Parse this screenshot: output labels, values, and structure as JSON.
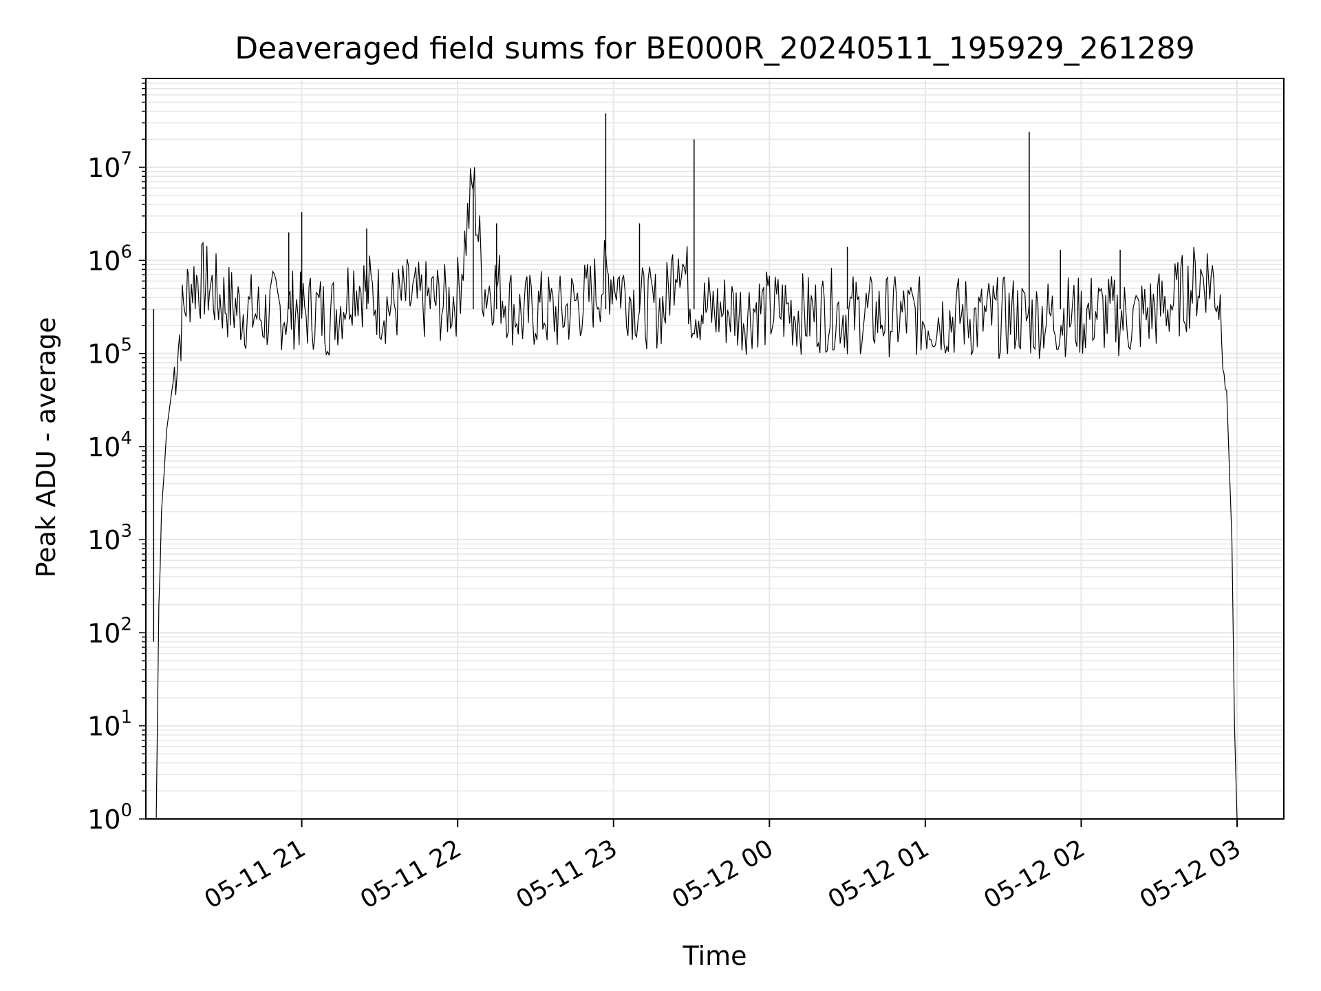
{
  "chart_data": {
    "type": "line",
    "title": "Deaveraged field sums for BE000R_20240511_195929_261289",
    "xlabel": "Time",
    "ylabel": "Peak ADU - average",
    "yscale": "log",
    "ylim": [
      1,
      90000000
    ],
    "xlim": [
      "2024-05-11 20:00",
      "2024-05-12 03:18"
    ],
    "grid": true,
    "line_color": "#000000",
    "grid_color": "#e6e6e6",
    "x_ticks": [
      {
        "value": "2024-05-11 21:00",
        "label": "05-11 21"
      },
      {
        "value": "2024-05-11 22:00",
        "label": "05-11 22"
      },
      {
        "value": "2024-05-11 23:00",
        "label": "05-11 23"
      },
      {
        "value": "2024-05-12 00:00",
        "label": "05-12 00"
      },
      {
        "value": "2024-05-12 01:00",
        "label": "05-12 01"
      },
      {
        "value": "2024-05-12 02:00",
        "label": "05-12 02"
      },
      {
        "value": "2024-05-12 03:00",
        "label": "05-12 03"
      }
    ],
    "y_ticks": [
      {
        "value": 1,
        "base": "10",
        "exp": "0"
      },
      {
        "value": 10,
        "base": "10",
        "exp": "1"
      },
      {
        "value": 100,
        "base": "10",
        "exp": "2"
      },
      {
        "value": 1000,
        "base": "10",
        "exp": "3"
      },
      {
        "value": 10000,
        "base": "10",
        "exp": "4"
      },
      {
        "value": 100000,
        "base": "10",
        "exp": "5"
      },
      {
        "value": 1000000,
        "base": "10",
        "exp": "6"
      },
      {
        "value": 10000000,
        "base": "10",
        "exp": "7"
      }
    ],
    "series": [
      {
        "x": [
          "2024-05-11 20:04",
          "2024-05-11 20:05",
          "2024-05-11 20:05:30",
          "2024-05-11 20:06",
          "2024-05-11 20:07",
          "2024-05-11 20:08",
          "2024-05-11 20:10",
          "2024-05-11 20:12",
          "2024-05-11 20:14",
          "2024-05-11 20:16",
          "2024-05-11 20:18",
          "2024-05-11 20:20",
          "2024-05-11 20:24",
          "2024-05-11 20:28",
          "2024-05-11 20:32",
          "2024-05-11 20:36",
          "2024-05-11 20:40",
          "2024-05-11 20:45",
          "2024-05-11 20:50",
          "2024-05-11 20:55",
          "2024-05-11 20:58",
          "2024-05-11 21:00",
          "2024-05-11 21:05",
          "2024-05-11 21:10",
          "2024-05-11 21:15",
          "2024-05-11 21:20",
          "2024-05-11 21:25",
          "2024-05-11 21:30",
          "2024-05-11 21:35",
          "2024-05-11 21:40",
          "2024-05-11 21:45",
          "2024-05-11 21:50",
          "2024-05-11 21:55",
          "2024-05-11 22:00",
          "2024-05-11 22:06",
          "2024-05-11 22:10",
          "2024-05-11 22:15",
          "2024-05-11 22:20",
          "2024-05-11 22:25",
          "2024-05-11 22:30",
          "2024-05-11 22:35",
          "2024-05-11 22:40",
          "2024-05-11 22:45",
          "2024-05-11 22:50",
          "2024-05-11 22:56",
          "2024-05-11 23:00",
          "2024-05-11 23:05",
          "2024-05-11 23:10",
          "2024-05-11 23:15",
          "2024-05-11 23:20",
          "2024-05-11 23:25",
          "2024-05-11 23:30",
          "2024-05-11 23:35",
          "2024-05-11 23:40",
          "2024-05-11 23:45",
          "2024-05-11 23:50",
          "2024-05-11 23:55",
          "2024-05-12 00:00",
          "2024-05-12 00:05",
          "2024-05-12 00:10",
          "2024-05-12 00:15",
          "2024-05-12 00:20",
          "2024-05-12 00:25",
          "2024-05-12 00:30",
          "2024-05-12 00:35",
          "2024-05-12 00:40",
          "2024-05-12 00:45",
          "2024-05-12 00:50",
          "2024-05-12 00:55",
          "2024-05-12 01:00",
          "2024-05-12 01:05",
          "2024-05-12 01:10",
          "2024-05-12 01:15",
          "2024-05-12 01:20",
          "2024-05-12 01:25",
          "2024-05-12 01:30",
          "2024-05-12 01:35",
          "2024-05-12 01:40",
          "2024-05-12 01:45",
          "2024-05-12 01:50",
          "2024-05-12 01:55",
          "2024-05-12 02:00",
          "2024-05-12 02:05",
          "2024-05-12 02:10",
          "2024-05-12 02:15",
          "2024-05-12 02:20",
          "2024-05-12 02:25",
          "2024-05-12 02:30",
          "2024-05-12 02:35",
          "2024-05-12 02:40",
          "2024-05-12 02:45",
          "2024-05-12 02:48",
          "2024-05-12 02:51",
          "2024-05-12 02:54",
          "2024-05-12 02:56",
          "2024-05-12 02:58",
          "2024-05-12 02:59",
          "2024-05-12 03:00"
        ],
        "y": [
          1,
          200,
          500,
          2000,
          5000,
          15000,
          40000,
          100000,
          250000,
          450000,
          600000,
          620000,
          550000,
          400000,
          350000,
          300000,
          280000,
          250000,
          300000,
          280000,
          320000,
          260000,
          300000,
          250000,
          330000,
          600000,
          500000,
          350000,
          320000,
          400000,
          350000,
          380000,
          330000,
          420000,
          7000000,
          500000,
          550000,
          350000,
          250000,
          300000,
          280000,
          260000,
          350000,
          380000,
          600000,
          700000,
          450000,
          330000,
          300000,
          320000,
          1500000,
          350000,
          300000,
          280000,
          300000,
          260000,
          320000,
          280000,
          300000,
          280000,
          260000,
          280000,
          300000,
          260000,
          270000,
          250000,
          260000,
          240000,
          260000,
          230000,
          250000,
          240000,
          260000,
          220000,
          250000,
          240000,
          260000,
          230000,
          250000,
          240000,
          260000,
          240000,
          280000,
          260000,
          250000,
          230000,
          270000,
          300000,
          350000,
          450000,
          600000,
          700000,
          600000,
          300000,
          40000,
          1000,
          10,
          1
        ]
      }
    ],
    "spikes": [
      {
        "x": "2024-05-11 20:03",
        "y": 80
      },
      {
        "x": "2024-05-11 20:55",
        "y": 2000000
      },
      {
        "x": "2024-05-11 21:00",
        "y": 3300000
      },
      {
        "x": "2024-05-11 21:25",
        "y": 2200000
      },
      {
        "x": "2024-05-11 22:06",
        "y": 7000000
      },
      {
        "x": "2024-05-11 22:15",
        "y": 2500000
      },
      {
        "x": "2024-05-11 22:57",
        "y": 38000000
      },
      {
        "x": "2024-05-11 23:10",
        "y": 2500000
      },
      {
        "x": "2024-05-11 23:31",
        "y": 20000000
      },
      {
        "x": "2024-05-12 00:30",
        "y": 1400000
      },
      {
        "x": "2024-05-12 01:40",
        "y": 24000000
      },
      {
        "x": "2024-05-12 01:52",
        "y": 1300000
      },
      {
        "x": "2024-05-12 02:15",
        "y": 1300000
      }
    ]
  }
}
